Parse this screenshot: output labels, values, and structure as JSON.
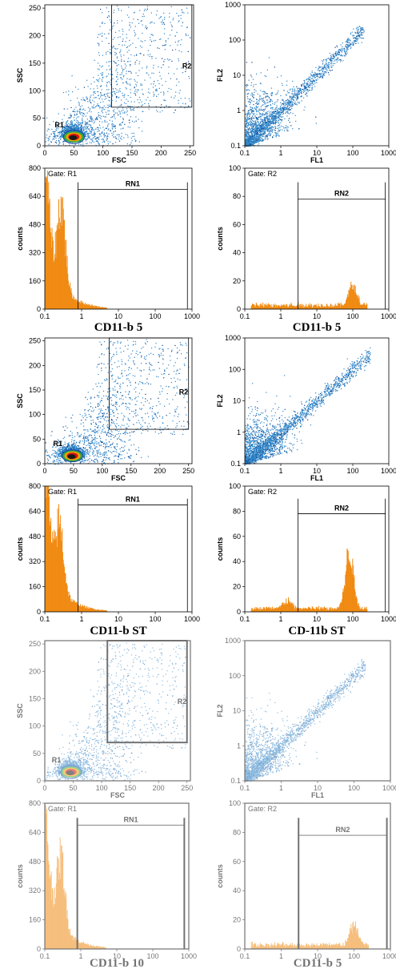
{
  "colors": {
    "dot": "#2f86c9",
    "dot_dark": "#0b3f8a",
    "hist": "#f08a12",
    "frame": "#000000",
    "hot": [
      "#1a1a1a",
      "#d21414",
      "#f0a000",
      "#2aa84a"
    ]
  },
  "chart_data": [
    {
      "type": "scatter",
      "xlabel": "FSC",
      "ylabel": "SSC",
      "xlim": [
        0,
        256
      ],
      "ylim": [
        0,
        256
      ],
      "xticks": [
        "0",
        "50",
        "100",
        "150",
        "200",
        "250"
      ],
      "yticks": [
        "0",
        "50",
        "100",
        "150",
        "200",
        "250"
      ],
      "regions": [
        {
          "label": "R1",
          "kind": "ellipse",
          "center": [
            50,
            16
          ],
          "radii": [
            18,
            12
          ]
        },
        {
          "label": "R2",
          "kind": "rect",
          "x": [
            115,
            253
          ],
          "y": [
            70,
            256
          ]
        }
      ],
      "population": {
        "core": [
          48,
          16
        ],
        "spread": "dense near origin, sparse up-right"
      }
    },
    {
      "type": "scatter",
      "xlabel": "FL1",
      "ylabel": "FL2",
      "scale": "log",
      "xlim": [
        0.1,
        1000
      ],
      "ylim": [
        0.1,
        1000
      ],
      "xticks": [
        "0.1",
        "1",
        "10",
        "100",
        "1000"
      ],
      "yticks": [
        "0.1",
        "1",
        "10",
        "100",
        "1000"
      ],
      "population": {
        "trend": "diagonal FL2 ≈ FL1",
        "x_range": [
          0.1,
          200
        ]
      }
    },
    {
      "type": "bar",
      "gate": "Gate: R1",
      "ylabel": "counts",
      "caption": "CD11-b 5",
      "xscale": "log",
      "xlim": [
        0.1,
        1000
      ],
      "ylim": [
        0,
        800
      ],
      "xticks": [
        "0.1",
        "1",
        "10",
        "100",
        "1000"
      ],
      "yticks": [
        "0",
        "160",
        "320",
        "480",
        "640",
        "800"
      ],
      "marker": {
        "label": "RN1",
        "x": [
          0.8,
          750
        ],
        "level": 680
      },
      "peaks": [
        {
          "x": 0.1,
          "y": 500
        },
        {
          "x": 0.28,
          "y": 470
        }
      ],
      "tail_end": 5
    },
    {
      "type": "bar",
      "gate": "Gate: R2",
      "ylabel": "counts",
      "caption": "CD11-b 5",
      "xscale": "log",
      "xlim": [
        0.1,
        1000
      ],
      "ylim": [
        0,
        100
      ],
      "xticks": [
        "0.1",
        "1",
        "10",
        "100",
        "1000"
      ],
      "yticks": [
        "0",
        "20",
        "40",
        "60",
        "80",
        "100"
      ],
      "marker": {
        "label": "RN2",
        "x": [
          3,
          800
        ],
        "level": 78
      },
      "peaks": [
        {
          "x": 100,
          "y": 15
        }
      ],
      "baseline": 3
    },
    {
      "type": "scatter",
      "xlabel": "FSC",
      "ylabel": "SSC",
      "xlim": [
        0,
        256
      ],
      "ylim": [
        0,
        256
      ],
      "xticks": [
        "0",
        "50",
        "100",
        "150",
        "200",
        "250"
      ],
      "yticks": [
        "0",
        "50",
        "100",
        "150",
        "200",
        "250"
      ],
      "regions": [
        {
          "label": "R1",
          "kind": "ellipse",
          "center": [
            48,
            16
          ],
          "radii": [
            18,
            12
          ]
        },
        {
          "label": "R2",
          "kind": "rect",
          "x": [
            112,
            250
          ],
          "y": [
            70,
            256
          ]
        }
      ],
      "population": {
        "core": [
          45,
          14
        ],
        "spread": "dense near origin, cloud up-right"
      }
    },
    {
      "type": "scatter",
      "xlabel": "FL1",
      "ylabel": "FL2",
      "scale": "log",
      "xlim": [
        0.1,
        1000
      ],
      "ylim": [
        0.1,
        1000
      ],
      "xticks": [
        "0.1",
        "1",
        "10",
        "100",
        "1000"
      ],
      "yticks": [
        "0.1",
        "1",
        "10",
        "100",
        "1000"
      ],
      "population": {
        "trend": "diagonal FL2 ≈ FL1",
        "x_range": [
          0.1,
          300
        ]
      }
    },
    {
      "type": "bar",
      "gate": "Gate: R1",
      "ylabel": "counts",
      "caption": "CD11-b ST",
      "xscale": "log",
      "xlim": [
        0.1,
        1000
      ],
      "ylim": [
        0,
        800
      ],
      "xticks": [
        "0.1",
        "1",
        "10",
        "100",
        "1000"
      ],
      "yticks": [
        "0",
        "160",
        "320",
        "480",
        "640",
        "800"
      ],
      "marker": {
        "label": "RN1",
        "x": [
          0.8,
          750
        ],
        "level": 680
      },
      "peaks": [
        {
          "x": 0.1,
          "y": 650
        },
        {
          "x": 0.25,
          "y": 420
        }
      ],
      "tail_end": 5
    },
    {
      "type": "bar",
      "gate": "Gate: R2",
      "ylabel": "counts",
      "caption": "CD-11b ST",
      "xscale": "log",
      "xlim": [
        0.1,
        1000
      ],
      "ylim": [
        0,
        100
      ],
      "xticks": [
        "0.1",
        "1",
        "10",
        "100",
        "1000"
      ],
      "yticks": [
        "0",
        "20",
        "40",
        "60",
        "80",
        "100"
      ],
      "marker": {
        "label": "RN2",
        "x": [
          3,
          800
        ],
        "level": 78
      },
      "peaks": [
        {
          "x": 80,
          "y": 45
        },
        {
          "x": 1.5,
          "y": 6
        }
      ],
      "baseline": 3
    },
    {
      "type": "scatter",
      "xlabel": "FSC",
      "ylabel": "SSC",
      "faded": true,
      "xlim": [
        0,
        256
      ],
      "ylim": [
        0,
        256
      ],
      "xticks": [
        "0",
        "50",
        "100",
        "150",
        "200",
        "250"
      ],
      "yticks": [
        "0",
        "50",
        "100",
        "150",
        "200",
        "250"
      ],
      "regions": [
        {
          "label": "R1",
          "kind": "ellipse",
          "center": [
            46,
            16
          ],
          "radii": [
            18,
            12
          ]
        },
        {
          "label": "R2",
          "kind": "rect",
          "x": [
            110,
            250
          ],
          "y": [
            70,
            256
          ]
        }
      ],
      "population": {
        "core": [
          45,
          14
        ],
        "spread": "dense near origin, sparse up-right"
      }
    },
    {
      "type": "scatter",
      "xlabel": "FL1",
      "ylabel": "FL2",
      "scale": "log",
      "faded": true,
      "xlim": [
        0.1,
        1000
      ],
      "ylim": [
        0.1,
        1000
      ],
      "xticks": [
        "0.1",
        "1",
        "10",
        "100",
        "1000"
      ],
      "yticks": [
        "0.1",
        "1",
        "10",
        "100",
        "1000"
      ],
      "population": {
        "trend": "diagonal FL2 ≈ FL1",
        "x_range": [
          0.1,
          200
        ]
      }
    },
    {
      "type": "bar",
      "gate": "Gate: R1",
      "ylabel": "counts",
      "caption": "CD11-b 10",
      "xscale": "log",
      "faded": true,
      "xlim": [
        0.1,
        1000
      ],
      "ylim": [
        0,
        800
      ],
      "xticks": [
        "0.1",
        "1",
        "10",
        "100",
        "1000"
      ],
      "yticks": [
        "0",
        "160",
        "320",
        "480",
        "640",
        "800"
      ],
      "marker": {
        "label": "RN1",
        "x": [
          0.8,
          750
        ],
        "level": 680
      },
      "peaks": [
        {
          "x": 0.1,
          "y": 380
        },
        {
          "x": 0.28,
          "y": 370
        }
      ],
      "tail_end": 5
    },
    {
      "type": "bar",
      "gate": "Gate: R2",
      "ylabel": "counts",
      "caption": "CD11-b 5",
      "xscale": "log",
      "faded": true,
      "xlim": [
        0.1,
        1000
      ],
      "ylim": [
        0,
        100
      ],
      "xticks": [
        "0.1",
        "1",
        "10",
        "100",
        "1000"
      ],
      "yticks": [
        "0",
        "20",
        "40",
        "60",
        "80",
        "100"
      ],
      "marker": {
        "label": "RN2",
        "x": [
          3,
          800
        ],
        "level": 78
      },
      "peaks": [
        {
          "x": 100,
          "y": 14
        }
      ],
      "baseline": 3
    }
  ]
}
